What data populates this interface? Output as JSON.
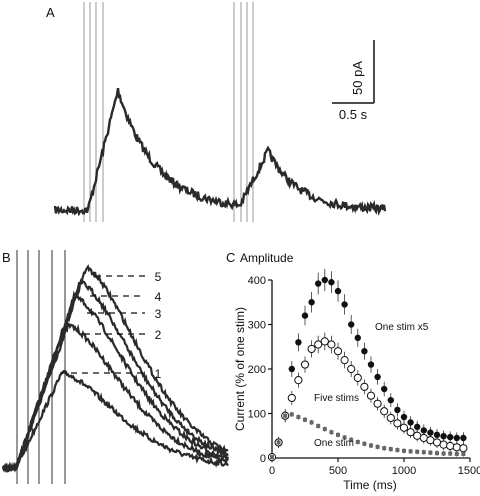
{
  "panels": {
    "a": {
      "letter": "A",
      "scalebar_y_label": "50 pA",
      "scalebar_x_label": "0.5 s"
    },
    "b": {
      "letter": "B",
      "level_labels": [
        "5",
        "4",
        "3",
        "2",
        "1"
      ]
    },
    "c": {
      "letter": "C",
      "title": "Amplitude"
    }
  },
  "chart_data": [
    {
      "panel": "A",
      "type": "line",
      "title": "",
      "description_units": {
        "scalebar_current_pA": 50,
        "scalebar_time_s": 0.5
      },
      "series": [
        {
          "name": "",
          "peak_current_pA": 95
        },
        {
          "name": "",
          "peak_current_pA": 45
        }
      ],
      "stimulus_artifacts": 4
    },
    {
      "panel": "B",
      "type": "line",
      "title": "",
      "series": [
        {
          "name": "1",
          "relative_peak": 1.0
        },
        {
          "name": "2",
          "relative_peak": 1.5
        },
        {
          "name": "3",
          "relative_peak": 1.8
        },
        {
          "name": "4",
          "relative_peak": 1.95
        },
        {
          "name": "5",
          "relative_peak": 2.1
        }
      ],
      "stimulus_artifacts": 5
    },
    {
      "panel": "C",
      "type": "scatter",
      "title": "Amplitude",
      "xlabel": "Time (ms)",
      "ylabel": "Current (% of one stim)",
      "xlim": [
        0,
        1500
      ],
      "ylim": [
        0,
        400
      ],
      "xticks": [
        0,
        500,
        1000,
        1500
      ],
      "yticks": [
        0,
        100,
        200,
        300,
        400
      ],
      "x": [
        0,
        50,
        100,
        150,
        200,
        250,
        300,
        350,
        400,
        450,
        500,
        550,
        600,
        650,
        700,
        750,
        800,
        850,
        900,
        950,
        1000,
        1050,
        1100,
        1150,
        1200,
        1250,
        1300,
        1350,
        1400,
        1450
      ],
      "series": [
        {
          "name": "One stim x5",
          "marker": "filled-circle",
          "values": [
            2,
            35,
            95,
            200,
            260,
            320,
            350,
            392,
            400,
            395,
            375,
            345,
            300,
            270,
            240,
            210,
            182,
            155,
            130,
            108,
            92,
            80,
            70,
            62,
            57,
            52,
            49,
            47,
            45,
            45
          ]
        },
        {
          "name": "Five stims",
          "marker": "open-circle",
          "values": [
            2,
            35,
            95,
            135,
            175,
            210,
            245,
            255,
            262,
            255,
            240,
            220,
            200,
            180,
            160,
            140,
            122,
            105,
            90,
            78,
            68,
            58,
            50,
            45,
            40,
            35,
            30,
            27,
            24,
            22
          ]
        },
        {
          "name": "One stim",
          "marker": "small-square",
          "values": [
            2,
            35,
            95,
            98,
            92,
            86,
            80,
            72,
            65,
            58,
            52,
            46,
            41,
            36,
            32,
            28,
            25,
            22,
            20,
            18,
            16,
            15,
            14,
            13,
            12,
            11,
            10,
            10,
            9,
            9
          ]
        }
      ]
    }
  ]
}
